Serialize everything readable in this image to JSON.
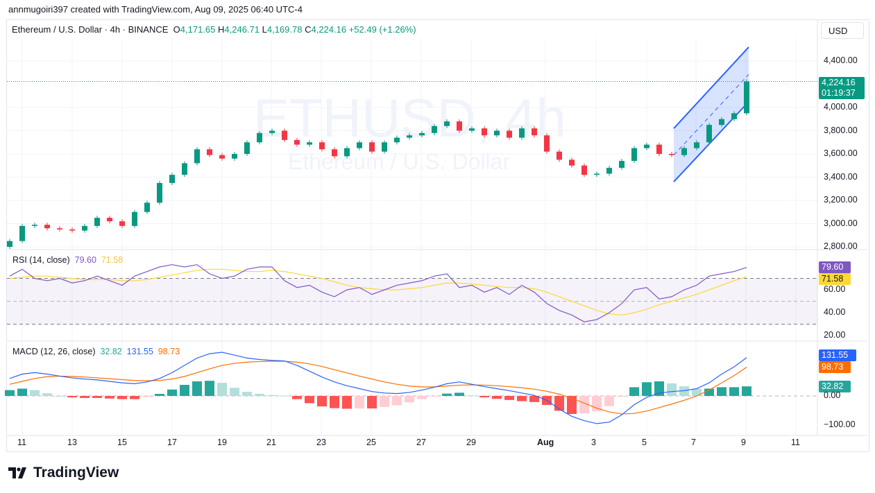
{
  "credit": "annmugoiri397 created with TradingView.com, Aug 09, 2025 06:40 UTC-4",
  "header": {
    "symbol": "Ethereum / U.S. Dollar · 4h · BINANCE",
    "o_label": "O",
    "o": "4,171.65",
    "h_label": "H",
    "h": "4,246.71",
    "l_label": "L",
    "l": "4,169.78",
    "c_label": "C",
    "c": "4,224.16",
    "change": "+52.49 (+1.26%)"
  },
  "currency": "USD",
  "watermark": {
    "line1": "ETHUSD, 4h",
    "line2": "Ethereum / U.S. Dollar"
  },
  "price_tag": {
    "price": "4,224.16",
    "countdown": "01:19:37"
  },
  "logo": "TradingView",
  "colors": {
    "up": "#089981",
    "down": "#f23645",
    "rsi": "#7e57c2",
    "rsi_ma": "#fdd835",
    "macd": "#2962ff",
    "signal": "#ff6d00",
    "channel": "#2962ff"
  },
  "chart_data": [
    {
      "type": "candlestick",
      "title": "Ethereum / U.S. Dollar · 4h · BINANCE",
      "x_labels": [
        "11",
        "13",
        "15",
        "17",
        "19",
        "21",
        "23",
        "25",
        "27",
        "29",
        "Aug",
        "3",
        "5",
        "7",
        "9",
        "11"
      ],
      "y_ticks": [
        "4,400.00",
        "4,000.00",
        "3,800.00",
        "3,600.00",
        "3,400.00",
        "3,200.00",
        "3,000.00",
        "2,800.00"
      ],
      "y_tick_values": [
        4400,
        4000,
        3800,
        3600,
        3400,
        3200,
        3000,
        2800
      ],
      "ylim": [
        2800,
        4520
      ],
      "x_start": "Jul 10 12:00",
      "x_step": "12h",
      "closes": [
        2850,
        2980,
        2990,
        2960,
        2950,
        2940,
        2980,
        3050,
        3020,
        2980,
        3100,
        3180,
        3350,
        3420,
        3520,
        3640,
        3590,
        3560,
        3600,
        3700,
        3780,
        3800,
        3720,
        3680,
        3700,
        3640,
        3580,
        3650,
        3700,
        3620,
        3700,
        3740,
        3760,
        3780,
        3840,
        3880,
        3800,
        3820,
        3760,
        3800,
        3740,
        3820,
        3760,
        3620,
        3550,
        3500,
        3420,
        3430,
        3480,
        3540,
        3650,
        3680,
        3600,
        3590,
        3650,
        3700,
        3850,
        3900,
        3950,
        4224.16
      ],
      "first_open": 2800,
      "last_price": 4224.16,
      "channel": {
        "start": "Aug 6 02:00",
        "end": "Aug 9 02:00",
        "upper": [
          3820,
          4520
        ],
        "lower": [
          3360,
          4050
        ]
      }
    },
    {
      "type": "line",
      "title": "RSI (14, close)",
      "series": [
        {
          "name": "RSI",
          "value_label": "79.60",
          "values": [
            72,
            78,
            70,
            68,
            70,
            66,
            68,
            72,
            68,
            64,
            72,
            76,
            80,
            82,
            80,
            82,
            74,
            70,
            72,
            78,
            80,
            80,
            68,
            62,
            64,
            58,
            54,
            60,
            62,
            56,
            60,
            64,
            66,
            68,
            72,
            74,
            62,
            64,
            58,
            62,
            56,
            64,
            58,
            48,
            42,
            38,
            32,
            34,
            40,
            48,
            60,
            62,
            52,
            54,
            60,
            64,
            72,
            74,
            76,
            79.6
          ]
        },
        {
          "name": "RSI MA",
          "value_label": "71.58",
          "values": [
            70,
            71,
            72,
            72,
            71,
            70,
            69,
            69,
            69,
            68,
            68,
            69,
            71,
            73,
            75,
            77,
            78,
            78,
            77,
            76,
            76,
            77,
            76,
            74,
            72,
            70,
            67,
            64,
            62,
            61,
            60,
            60,
            61,
            62,
            64,
            66,
            66,
            65,
            64,
            63,
            62,
            62,
            61,
            58,
            54,
            50,
            46,
            42,
            39,
            38,
            40,
            43,
            47,
            50,
            53,
            56,
            60,
            64,
            68,
            71.58
          ]
        }
      ],
      "bands": [
        70,
        50,
        30
      ],
      "y_ticks": [
        "60.00",
        "40.00",
        "20.00"
      ],
      "y_tick_values": [
        60,
        40,
        20
      ]
    },
    {
      "type": "line+bar",
      "title": "MACD (12, 26, close)",
      "histogram_label": "32.82",
      "histogram": [
        20,
        25,
        20,
        9,
        0,
        -5,
        -7,
        -7,
        -9,
        -11,
        -11,
        -4,
        7,
        22,
        38,
        50,
        52,
        45,
        28,
        14,
        7,
        3,
        1,
        -11,
        -25,
        -36,
        -42,
        -44,
        -43,
        -43,
        -38,
        -32,
        -22,
        -11,
        -1,
        8,
        11,
        2,
        -5,
        -10,
        -14,
        -18,
        -21,
        -31,
        -51,
        -62,
        -60,
        -53,
        -35,
        -3,
        30,
        47,
        50,
        43,
        33,
        25,
        25,
        30,
        30,
        32.82
      ],
      "series": [
        {
          "name": "MACD",
          "value_label": "131.55",
          "values": [
            60,
            75,
            80,
            75,
            68,
            62,
            58,
            55,
            50,
            45,
            42,
            48,
            60,
            80,
            105,
            130,
            145,
            150,
            140,
            130,
            125,
            122,
            120,
            105,
            85,
            65,
            48,
            35,
            25,
            15,
            10,
            8,
            12,
            20,
            30,
            42,
            48,
            40,
            32,
            25,
            18,
            10,
            2,
            -15,
            -45,
            -70,
            -85,
            -95,
            -90,
            -65,
            -30,
            -5,
            10,
            15,
            18,
            25,
            45,
            75,
            100,
            131.55
          ]
        },
        {
          "name": "Signal",
          "value_label": "98.73",
          "values": [
            40,
            50,
            60,
            66,
            68,
            67,
            65,
            62,
            59,
            56,
            53,
            52,
            53,
            58,
            67,
            80,
            93,
            105,
            112,
            116,
            118,
            119,
            119,
            116,
            110,
            101,
            90,
            79,
            68,
            58,
            48,
            40,
            34,
            31,
            31,
            34,
            37,
            38,
            37,
            35,
            32,
            28,
            23,
            16,
            6,
            -8,
            -25,
            -42,
            -55,
            -62,
            -60,
            -52,
            -40,
            -28,
            -15,
            0,
            20,
            45,
            70,
            98.73
          ]
        }
      ],
      "y_ticks": [
        "0.00",
        "−100.00"
      ],
      "y_tick_values": [
        0,
        -100
      ]
    }
  ]
}
